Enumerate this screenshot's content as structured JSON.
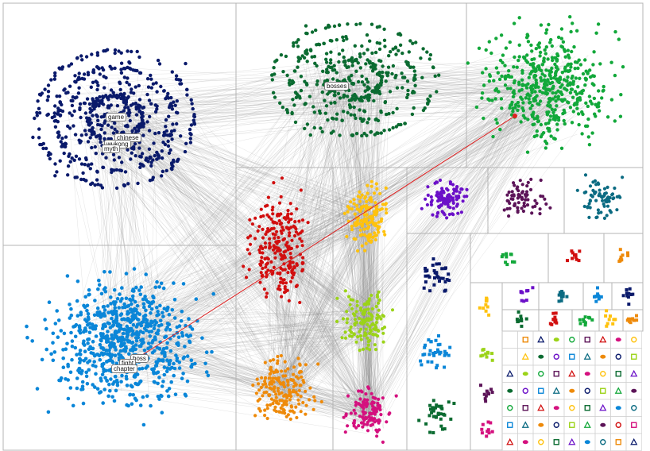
{
  "graph": {
    "labels": {
      "game": "game",
      "chinese": "chinese",
      "wukong": "wukong",
      "myth": "myth",
      "bosses": "bosses",
      "boss": "boss",
      "fight": "fight",
      "chapter": "chapter"
    },
    "colors": {
      "navy": "#0a1a6b",
      "dark_green": "#0b6b31",
      "green": "#12a83a",
      "light_blue": "#0a86d8",
      "red": "#d10f0f",
      "orange": "#ee8a0a",
      "gold": "#ffc20e",
      "lime": "#9bd318",
      "purple": "#6b10c8",
      "plum": "#5c1458",
      "teal": "#0b6b82",
      "magenta": "#d4107e",
      "edge": "#8a8a8a",
      "highlight_edge": "#e02020",
      "grid": "#b4b4b4"
    }
  }
}
